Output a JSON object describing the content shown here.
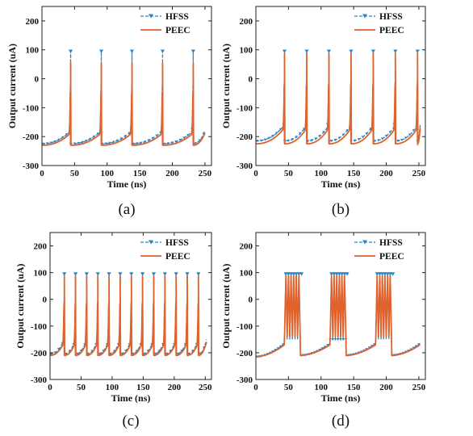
{
  "colors": {
    "hfss": "#2a86c6",
    "peec": "#e0622c",
    "axis": "#222222"
  },
  "chart_data": [
    {
      "type": "line",
      "panel": "a",
      "caption": "(a)",
      "xlabel": "Time (ns)",
      "ylabel": "Output current (uA)",
      "xlim": [
        0,
        260
      ],
      "ylim": [
        -300,
        250
      ],
      "xticks": [
        "0",
        "50",
        "100",
        "150",
        "200",
        "250"
      ],
      "yticks": [
        "-300",
        "-200",
        "-100",
        "0",
        "100",
        "200"
      ],
      "legend": {
        "placement": "top-right",
        "entries": [
          "HFSS",
          "PEEC"
        ]
      },
      "grid": false,
      "spike_times_ns": [
        44,
        91,
        138,
        185,
        232
      ],
      "series": [
        {
          "name": "HFSS",
          "baseline_start": -225,
          "baseline_rise": -180,
          "spike_peak": 95,
          "end_ns": 250
        },
        {
          "name": "PEEC",
          "baseline_start": -230,
          "baseline_rise": -188,
          "spike_peak": 55,
          "end_ns": 250
        }
      ]
    },
    {
      "type": "line",
      "panel": "b",
      "caption": "(b)",
      "xlabel": "Time (ns)",
      "ylabel": "Output current (uA)",
      "xlim": [
        0,
        260
      ],
      "ylim": [
        -300,
        250
      ],
      "xticks": [
        "0",
        "50",
        "100",
        "150",
        "200",
        "250"
      ],
      "yticks": [
        "-300",
        "-200",
        "-100",
        "0",
        "100",
        "200"
      ],
      "legend": {
        "placement": "top-right",
        "entries": [
          "HFSS",
          "PEEC"
        ]
      },
      "grid": false,
      "spike_times_ns": [
        44,
        78,
        112,
        146,
        180,
        214,
        248
      ],
      "series": [
        {
          "name": "HFSS",
          "baseline_start": -215,
          "baseline_rise": -160,
          "spike_peak": 95,
          "end_ns": 252
        },
        {
          "name": "PEEC",
          "baseline_start": -225,
          "baseline_rise": -170,
          "spike_peak": 88,
          "end_ns": 252
        }
      ]
    },
    {
      "type": "line",
      "panel": "c",
      "caption": "(c)",
      "xlabel": "Time (ns)",
      "ylabel": "Output current (uA)",
      "xlim": [
        0,
        260
      ],
      "ylim": [
        -300,
        250
      ],
      "xticks": [
        "0",
        "50",
        "100",
        "150",
        "200",
        "250"
      ],
      "yticks": [
        "-300",
        "-200",
        "-100",
        "0",
        "100",
        "200"
      ],
      "legend": {
        "placement": "top-right",
        "entries": [
          "HFSS",
          "PEEC"
        ]
      },
      "grid": false,
      "spike_times_ns": [
        23,
        41,
        59,
        77,
        95,
        113,
        131,
        149,
        167,
        185,
        203,
        221,
        239
      ],
      "series": [
        {
          "name": "HFSS",
          "baseline_start": -205,
          "baseline_rise": -150,
          "spike_peak": 95,
          "end_ns": 252
        },
        {
          "name": "PEEC",
          "baseline_start": -210,
          "baseline_rise": -160,
          "spike_peak": 88,
          "end_ns": 252
        }
      ]
    },
    {
      "type": "line",
      "panel": "d",
      "caption": "(d)",
      "xlabel": "Time (ns)",
      "ylabel": "Output current (uA)",
      "xlim": [
        0,
        260
      ],
      "ylim": [
        -300,
        250
      ],
      "xticks": [
        "0",
        "50",
        "100",
        "150",
        "200",
        "250"
      ],
      "yticks": [
        "-300",
        "-200",
        "-100",
        "0",
        "100",
        "200"
      ],
      "legend": {
        "placement": "top-right",
        "entries": [
          "HFSS",
          "PEEC"
        ]
      },
      "grid": false,
      "bursts_ns": [
        [
          44,
          68
        ],
        [
          114,
          138
        ],
        [
          184,
          208
        ]
      ],
      "spikes_per_burst": 7,
      "series": [
        {
          "name": "HFSS",
          "baseline_start": -215,
          "baseline_rise": -165,
          "spike_peak": 95,
          "burst_floor": -150,
          "end_ns": 252
        },
        {
          "name": "PEEC",
          "baseline_start": -215,
          "baseline_rise": -170,
          "spike_peak": 90,
          "burst_floor": -140,
          "end_ns": 252
        }
      ]
    }
  ]
}
